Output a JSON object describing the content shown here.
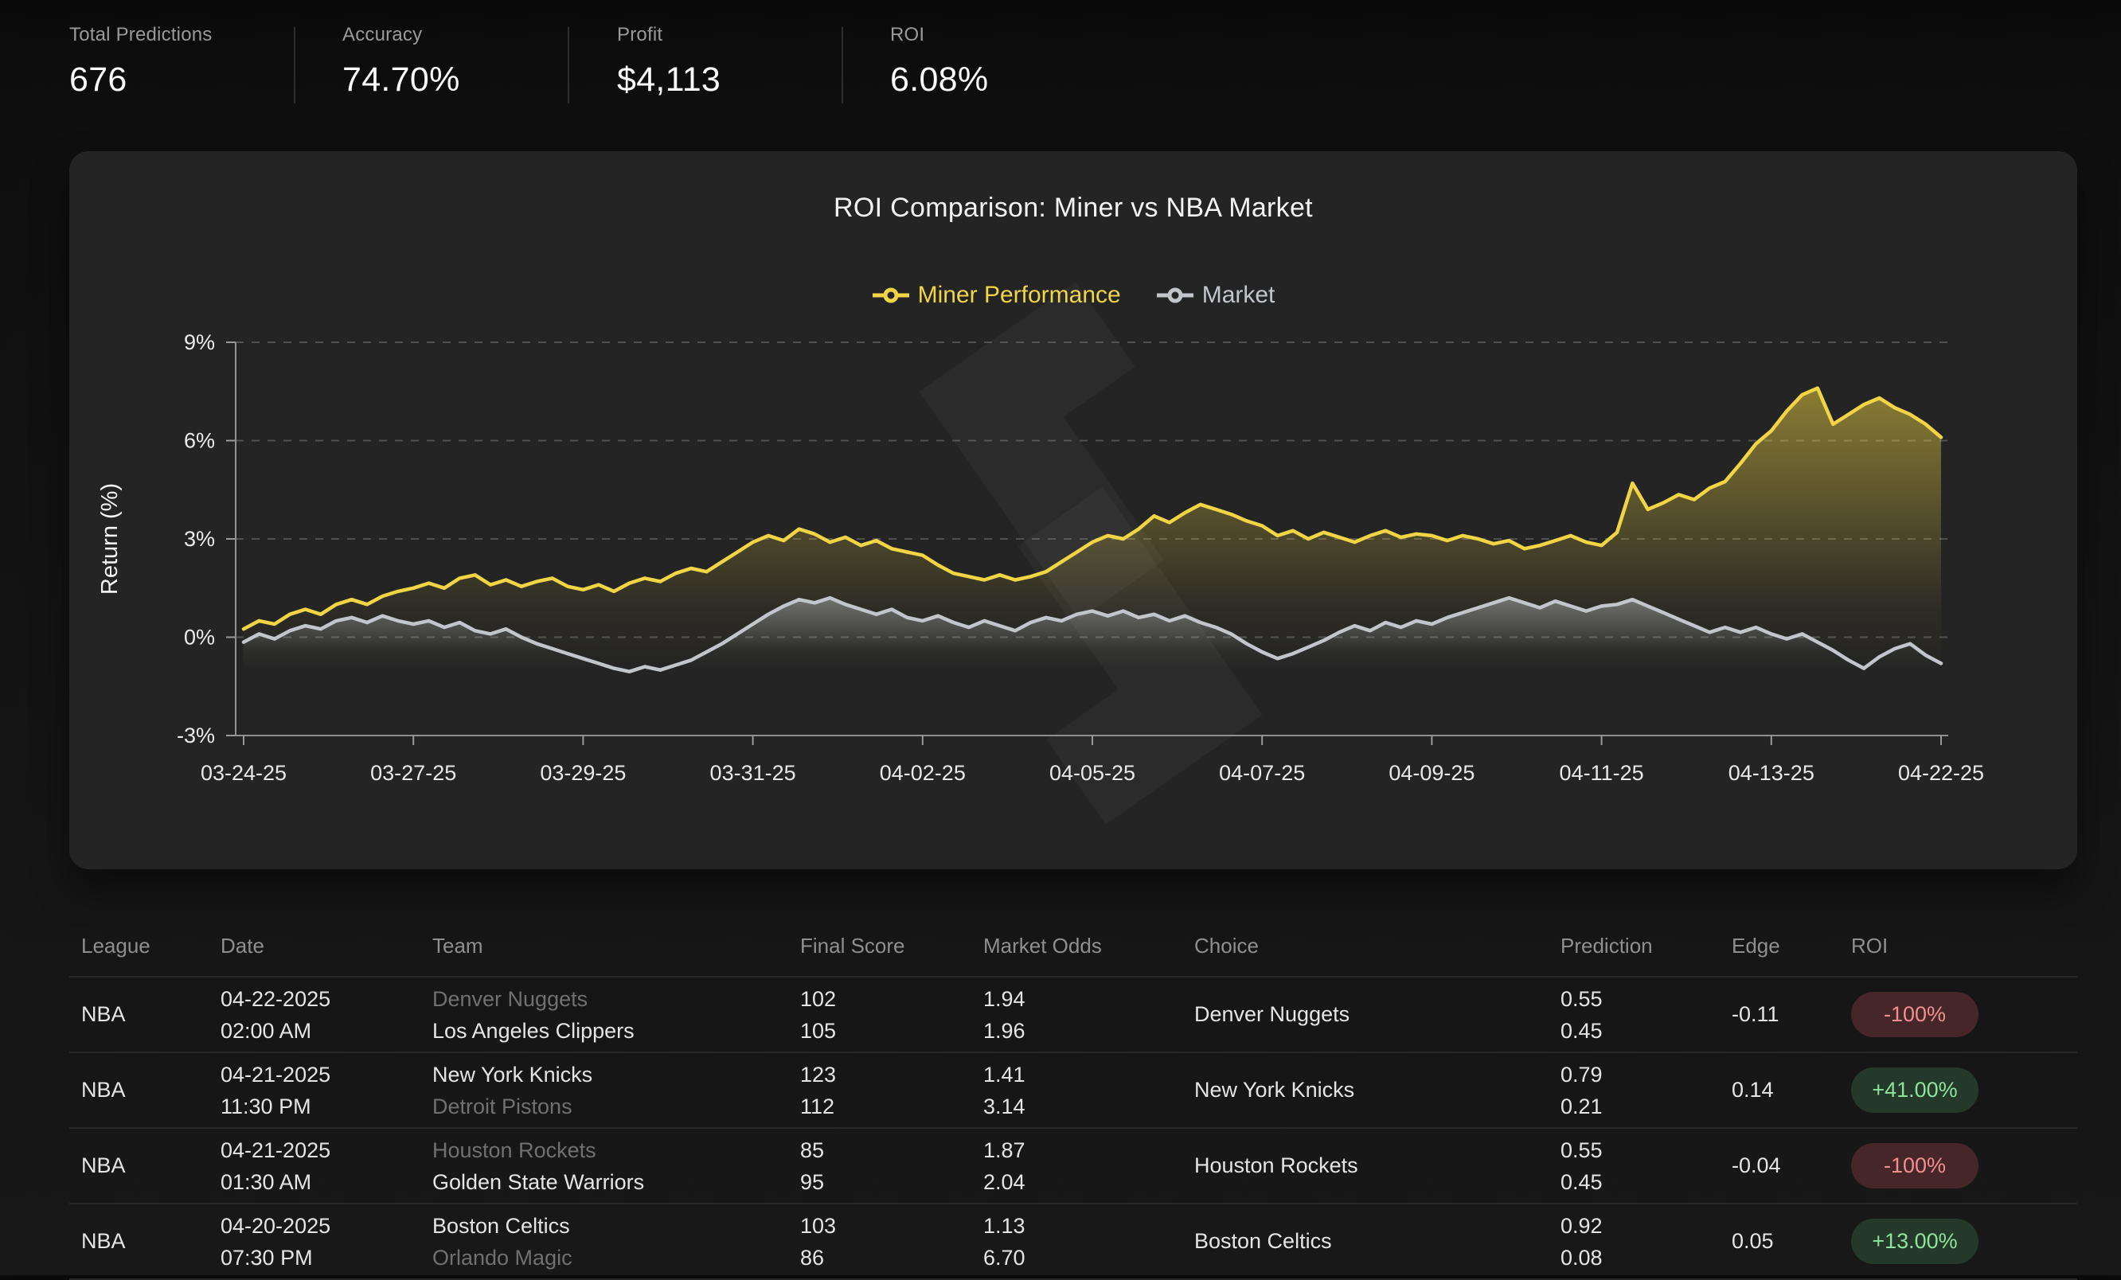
{
  "stats": [
    {
      "label": "Total Predictions",
      "value": "676"
    },
    {
      "label": "Accuracy",
      "value": "74.70%"
    },
    {
      "label": "Profit",
      "value": "$4,113"
    },
    {
      "label": "ROI",
      "value": "6.08%"
    }
  ],
  "chart": {
    "title": "ROI Comparison: Miner vs NBA Market",
    "legend": [
      {
        "label": "Miner Performance",
        "color": "#f2d544"
      },
      {
        "label": "Market",
        "color": "#c2c6ca"
      }
    ]
  },
  "chart_data": {
    "type": "line",
    "title": "ROI Comparison: Miner vs NBA Market",
    "xlabel": "",
    "ylabel": "Return (%)",
    "ylim": [
      -3,
      9
    ],
    "yticks": [
      {
        "v": 9,
        "label": "9%"
      },
      {
        "v": 6,
        "label": "6%"
      },
      {
        "v": 3,
        "label": "3%"
      },
      {
        "v": 0,
        "label": "0%"
      },
      {
        "v": -3,
        "label": "-3%"
      }
    ],
    "xticks": [
      "03-24-25",
      "03-27-25",
      "03-29-25",
      "03-31-25",
      "04-02-25",
      "04-05-25",
      "04-07-25",
      "04-09-25",
      "04-11-25",
      "04-13-25",
      "04-22-25"
    ],
    "grid": "dashed-horizontal",
    "legend_position": "top",
    "series": [
      {
        "name": "Miner Performance",
        "color": "#f2d544",
        "values": [
          0.25,
          0.5,
          0.4,
          0.7,
          0.85,
          0.7,
          1.0,
          1.15,
          1.0,
          1.25,
          1.4,
          1.5,
          1.65,
          1.5,
          1.8,
          1.9,
          1.6,
          1.75,
          1.55,
          1.7,
          1.8,
          1.55,
          1.45,
          1.6,
          1.4,
          1.65,
          1.8,
          1.7,
          1.95,
          2.1,
          2.0,
          2.3,
          2.6,
          2.9,
          3.1,
          2.95,
          3.3,
          3.15,
          2.9,
          3.05,
          2.8,
          2.95,
          2.7,
          2.6,
          2.5,
          2.2,
          1.95,
          1.85,
          1.75,
          1.9,
          1.75,
          1.85,
          2.0,
          2.3,
          2.6,
          2.9,
          3.1,
          3.0,
          3.3,
          3.7,
          3.5,
          3.8,
          4.05,
          3.9,
          3.75,
          3.55,
          3.4,
          3.1,
          3.25,
          3.0,
          3.2,
          3.05,
          2.9,
          3.1,
          3.25,
          3.05,
          3.15,
          3.1,
          2.95,
          3.1,
          3.0,
          2.85,
          2.95,
          2.7,
          2.8,
          2.95,
          3.1,
          2.9,
          2.8,
          3.2,
          4.7,
          3.9,
          4.1,
          4.35,
          4.2,
          4.55,
          4.75,
          5.3,
          5.9,
          6.3,
          6.9,
          7.4,
          7.6,
          6.5,
          6.8,
          7.1,
          7.3,
          7.0,
          6.8,
          6.5,
          6.1
        ]
      },
      {
        "name": "Market",
        "color": "#c2c6ca",
        "values": [
          -0.15,
          0.1,
          -0.05,
          0.2,
          0.35,
          0.25,
          0.5,
          0.6,
          0.45,
          0.65,
          0.5,
          0.4,
          0.5,
          0.3,
          0.45,
          0.2,
          0.1,
          0.25,
          0.0,
          -0.2,
          -0.35,
          -0.5,
          -0.65,
          -0.8,
          -0.95,
          -1.05,
          -0.9,
          -1.0,
          -0.85,
          -0.7,
          -0.45,
          -0.2,
          0.1,
          0.4,
          0.7,
          0.95,
          1.15,
          1.05,
          1.2,
          1.0,
          0.85,
          0.7,
          0.85,
          0.6,
          0.5,
          0.65,
          0.45,
          0.3,
          0.5,
          0.35,
          0.2,
          0.45,
          0.6,
          0.5,
          0.7,
          0.8,
          0.65,
          0.8,
          0.6,
          0.7,
          0.5,
          0.65,
          0.45,
          0.3,
          0.1,
          -0.2,
          -0.45,
          -0.65,
          -0.5,
          -0.3,
          -0.1,
          0.15,
          0.35,
          0.2,
          0.45,
          0.3,
          0.5,
          0.4,
          0.6,
          0.75,
          0.9,
          1.05,
          1.2,
          1.05,
          0.9,
          1.1,
          0.95,
          0.8,
          0.95,
          1.0,
          1.15,
          0.95,
          0.75,
          0.55,
          0.35,
          0.15,
          0.3,
          0.15,
          0.3,
          0.1,
          -0.05,
          0.1,
          -0.15,
          -0.4,
          -0.7,
          -0.95,
          -0.6,
          -0.35,
          -0.2,
          -0.55,
          -0.8
        ]
      }
    ]
  },
  "table": {
    "headers": [
      "League",
      "Date",
      "Team",
      "Final Score",
      "Market Odds",
      "Choice",
      "Prediction",
      "Edge",
      "ROI"
    ],
    "rows": [
      {
        "league": "NBA",
        "date": "04-22-2025",
        "time": "02:00 AM",
        "teams": [
          {
            "name": "Denver Nuggets",
            "dimmed": true
          },
          {
            "name": "Los Angeles Clippers",
            "dimmed": false
          }
        ],
        "scores": [
          "102",
          "105"
        ],
        "odds": [
          "1.94",
          "1.96"
        ],
        "choice": "Denver Nuggets",
        "prediction": [
          "0.55",
          "0.45"
        ],
        "edge": "-0.11",
        "roi": {
          "text": "-100%",
          "kind": "loss"
        }
      },
      {
        "league": "NBA",
        "date": "04-21-2025",
        "time": "11:30 PM",
        "teams": [
          {
            "name": "New York Knicks",
            "dimmed": false
          },
          {
            "name": "Detroit Pistons",
            "dimmed": true
          }
        ],
        "scores": [
          "123",
          "112"
        ],
        "odds": [
          "1.41",
          "3.14"
        ],
        "choice": "New York Knicks",
        "prediction": [
          "0.79",
          "0.21"
        ],
        "edge": "0.14",
        "roi": {
          "text": "+41.00%",
          "kind": "win"
        }
      },
      {
        "league": "NBA",
        "date": "04-21-2025",
        "time": "01:30 AM",
        "teams": [
          {
            "name": "Houston Rockets",
            "dimmed": true
          },
          {
            "name": "Golden State Warriors",
            "dimmed": false
          }
        ],
        "scores": [
          "85",
          "95"
        ],
        "odds": [
          "1.87",
          "2.04"
        ],
        "choice": "Houston Rockets",
        "prediction": [
          "0.55",
          "0.45"
        ],
        "edge": "-0.04",
        "roi": {
          "text": "-100%",
          "kind": "loss"
        }
      },
      {
        "league": "NBA",
        "date": "04-20-2025",
        "time": "07:30 PM",
        "teams": [
          {
            "name": "Boston Celtics",
            "dimmed": false
          },
          {
            "name": "Orlando Magic",
            "dimmed": true
          }
        ],
        "scores": [
          "103",
          "86"
        ],
        "odds": [
          "1.13",
          "6.70"
        ],
        "choice": "Boston Celtics",
        "prediction": [
          "0.92",
          "0.08"
        ],
        "edge": "0.05",
        "roi": {
          "text": "+13.00%",
          "kind": "win"
        }
      }
    ]
  }
}
